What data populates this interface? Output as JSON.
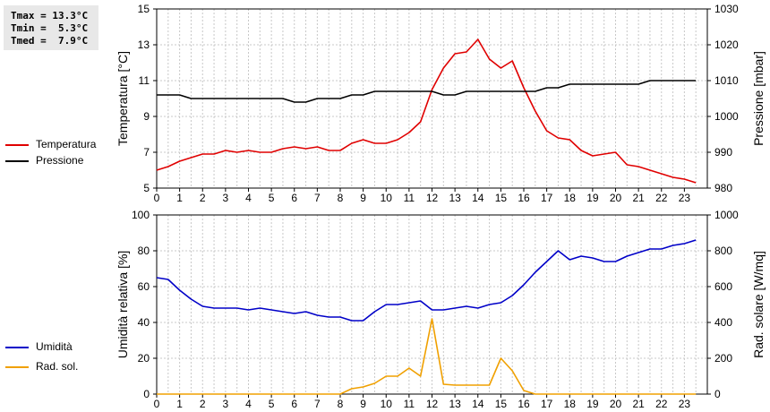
{
  "stats": {
    "tmax": "Tmax = 13.3°C",
    "tmin": "Tmin =  5.3°C",
    "tmed": "Tmed =  7.9°C"
  },
  "legend_top": [
    {
      "label": "Temperatura",
      "color": "#e00000"
    },
    {
      "label": "Pressione",
      "color": "#000000"
    }
  ],
  "legend_bottom": [
    {
      "label": "Umidità",
      "color": "#0000c8"
    },
    {
      "label": "Rad. sol.",
      "color": "#f0a000"
    }
  ],
  "chart_data": [
    {
      "type": "line",
      "xlim": [
        0,
        24
      ],
      "x_ticks": [
        "0",
        "1",
        "2",
        "3",
        "4",
        "5",
        "6",
        "7",
        "8",
        "9",
        "10",
        "11",
        "12",
        "13",
        "14",
        "15",
        "16",
        "17",
        "18",
        "19",
        "20",
        "21",
        "22",
        "23"
      ],
      "y_left": {
        "label": "Temperatura [°C]",
        "lim": [
          5,
          15
        ],
        "ticks": [
          "5",
          "7",
          "9",
          "11",
          "13",
          "15"
        ]
      },
      "y_right": {
        "label": "Pressione [mbar]",
        "lim": [
          980,
          1030
        ],
        "ticks": [
          "980",
          "990",
          "1000",
          "1010",
          "1020",
          "1030"
        ]
      },
      "grid": true,
      "series": [
        {
          "name": "Temperatura",
          "axis": "left",
          "color": "#e00000",
          "x": [
            0,
            0.5,
            1,
            1.5,
            2,
            2.5,
            3,
            3.5,
            4,
            4.5,
            5,
            5.5,
            6,
            6.5,
            7,
            7.5,
            8,
            8.5,
            9,
            9.5,
            10,
            10.5,
            11,
            11.5,
            12,
            12.5,
            13,
            13.5,
            14,
            14.5,
            15,
            15.5,
            16,
            16.5,
            17,
            17.5,
            18,
            18.5,
            19,
            19.5,
            20,
            20.5,
            21,
            21.5,
            22,
            22.5,
            23,
            23.5
          ],
          "y": [
            6.0,
            6.2,
            6.5,
            6.7,
            6.9,
            6.9,
            7.1,
            7.0,
            7.1,
            7.0,
            7.0,
            7.2,
            7.3,
            7.2,
            7.3,
            7.1,
            7.1,
            7.5,
            7.7,
            7.5,
            7.5,
            7.7,
            8.1,
            8.7,
            10.5,
            11.7,
            12.5,
            12.6,
            13.3,
            12.2,
            11.7,
            12.1,
            10.6,
            9.3,
            8.2,
            7.8,
            7.7,
            7.1,
            6.8,
            6.9,
            7.0,
            6.3,
            6.2,
            6.0,
            5.8,
            5.6,
            5.5,
            5.3
          ]
        },
        {
          "name": "Pressione",
          "axis": "right",
          "color": "#000000",
          "x": [
            0,
            0.5,
            1,
            1.5,
            2,
            2.5,
            3,
            3.5,
            4,
            4.5,
            5,
            5.5,
            6,
            6.5,
            7,
            7.5,
            8,
            8.5,
            9,
            9.5,
            10,
            10.5,
            11,
            11.5,
            12,
            12.5,
            13,
            13.5,
            14,
            14.5,
            15,
            15.5,
            16,
            16.5,
            17,
            17.5,
            18,
            18.5,
            19,
            19.5,
            20,
            20.5,
            21,
            21.5,
            22,
            22.5,
            23,
            23.5
          ],
          "y": [
            1006,
            1006,
            1006,
            1005,
            1005,
            1005,
            1005,
            1005,
            1005,
            1005,
            1005,
            1005,
            1004,
            1004,
            1005,
            1005,
            1005,
            1006,
            1006,
            1007,
            1007,
            1007,
            1007,
            1007,
            1007,
            1006,
            1006,
            1007,
            1007,
            1007,
            1007,
            1007,
            1007,
            1007,
            1008,
            1008,
            1009,
            1009,
            1009,
            1009,
            1009,
            1009,
            1009,
            1010,
            1010,
            1010,
            1010,
            1010
          ]
        }
      ]
    },
    {
      "type": "line",
      "xlim": [
        0,
        24
      ],
      "x_ticks": [
        "0",
        "1",
        "2",
        "3",
        "4",
        "5",
        "6",
        "7",
        "8",
        "9",
        "10",
        "11",
        "12",
        "13",
        "14",
        "15",
        "16",
        "17",
        "18",
        "19",
        "20",
        "21",
        "22",
        "23"
      ],
      "y_left": {
        "label": "Umidità relativa [%]",
        "lim": [
          0,
          100
        ],
        "ticks": [
          "0",
          "20",
          "40",
          "60",
          "80",
          "100"
        ]
      },
      "y_right": {
        "label": "Rad. solare [W/mq]",
        "lim": [
          0,
          1000
        ],
        "ticks": [
          "0",
          "200",
          "400",
          "600",
          "800",
          "1000"
        ]
      },
      "grid": true,
      "series": [
        {
          "name": "Umidità",
          "axis": "left",
          "color": "#0000c8",
          "x": [
            0,
            0.5,
            1,
            1.5,
            2,
            2.5,
            3,
            3.5,
            4,
            4.5,
            5,
            5.5,
            6,
            6.5,
            7,
            7.5,
            8,
            8.5,
            9,
            9.5,
            10,
            10.5,
            11,
            11.5,
            12,
            12.5,
            13,
            13.5,
            14,
            14.5,
            15,
            15.5,
            16,
            16.5,
            17,
            17.5,
            18,
            18.5,
            19,
            19.5,
            20,
            20.5,
            21,
            21.5,
            22,
            22.5,
            23,
            23.5
          ],
          "y": [
            65,
            64,
            58,
            53,
            49,
            48,
            48,
            48,
            47,
            48,
            47,
            46,
            45,
            46,
            44,
            43,
            43,
            41,
            41,
            46,
            50,
            50,
            51,
            52,
            47,
            47,
            48,
            49,
            48,
            50,
            51,
            55,
            61,
            68,
            74,
            80,
            75,
            77,
            76,
            74,
            74,
            77,
            79,
            81,
            81,
            83,
            84,
            86
          ]
        },
        {
          "name": "Rad. sol.",
          "axis": "right",
          "color": "#f0a000",
          "x": [
            0,
            1,
            2,
            3,
            4,
            5,
            6,
            7,
            8,
            8.5,
            9,
            9.5,
            10,
            10.5,
            11,
            11.5,
            12,
            12.5,
            13,
            13.5,
            14,
            14.5,
            15,
            15.5,
            16,
            16.5,
            17,
            18,
            19,
            20,
            21,
            22,
            23,
            23.5
          ],
          "y": [
            0,
            0,
            0,
            0,
            0,
            0,
            0,
            0,
            0,
            30,
            40,
            60,
            100,
            100,
            145,
            100,
            420,
            55,
            50,
            50,
            50,
            50,
            200,
            130,
            20,
            0,
            0,
            0,
            0,
            0,
            0,
            0,
            0,
            0
          ]
        }
      ]
    }
  ]
}
